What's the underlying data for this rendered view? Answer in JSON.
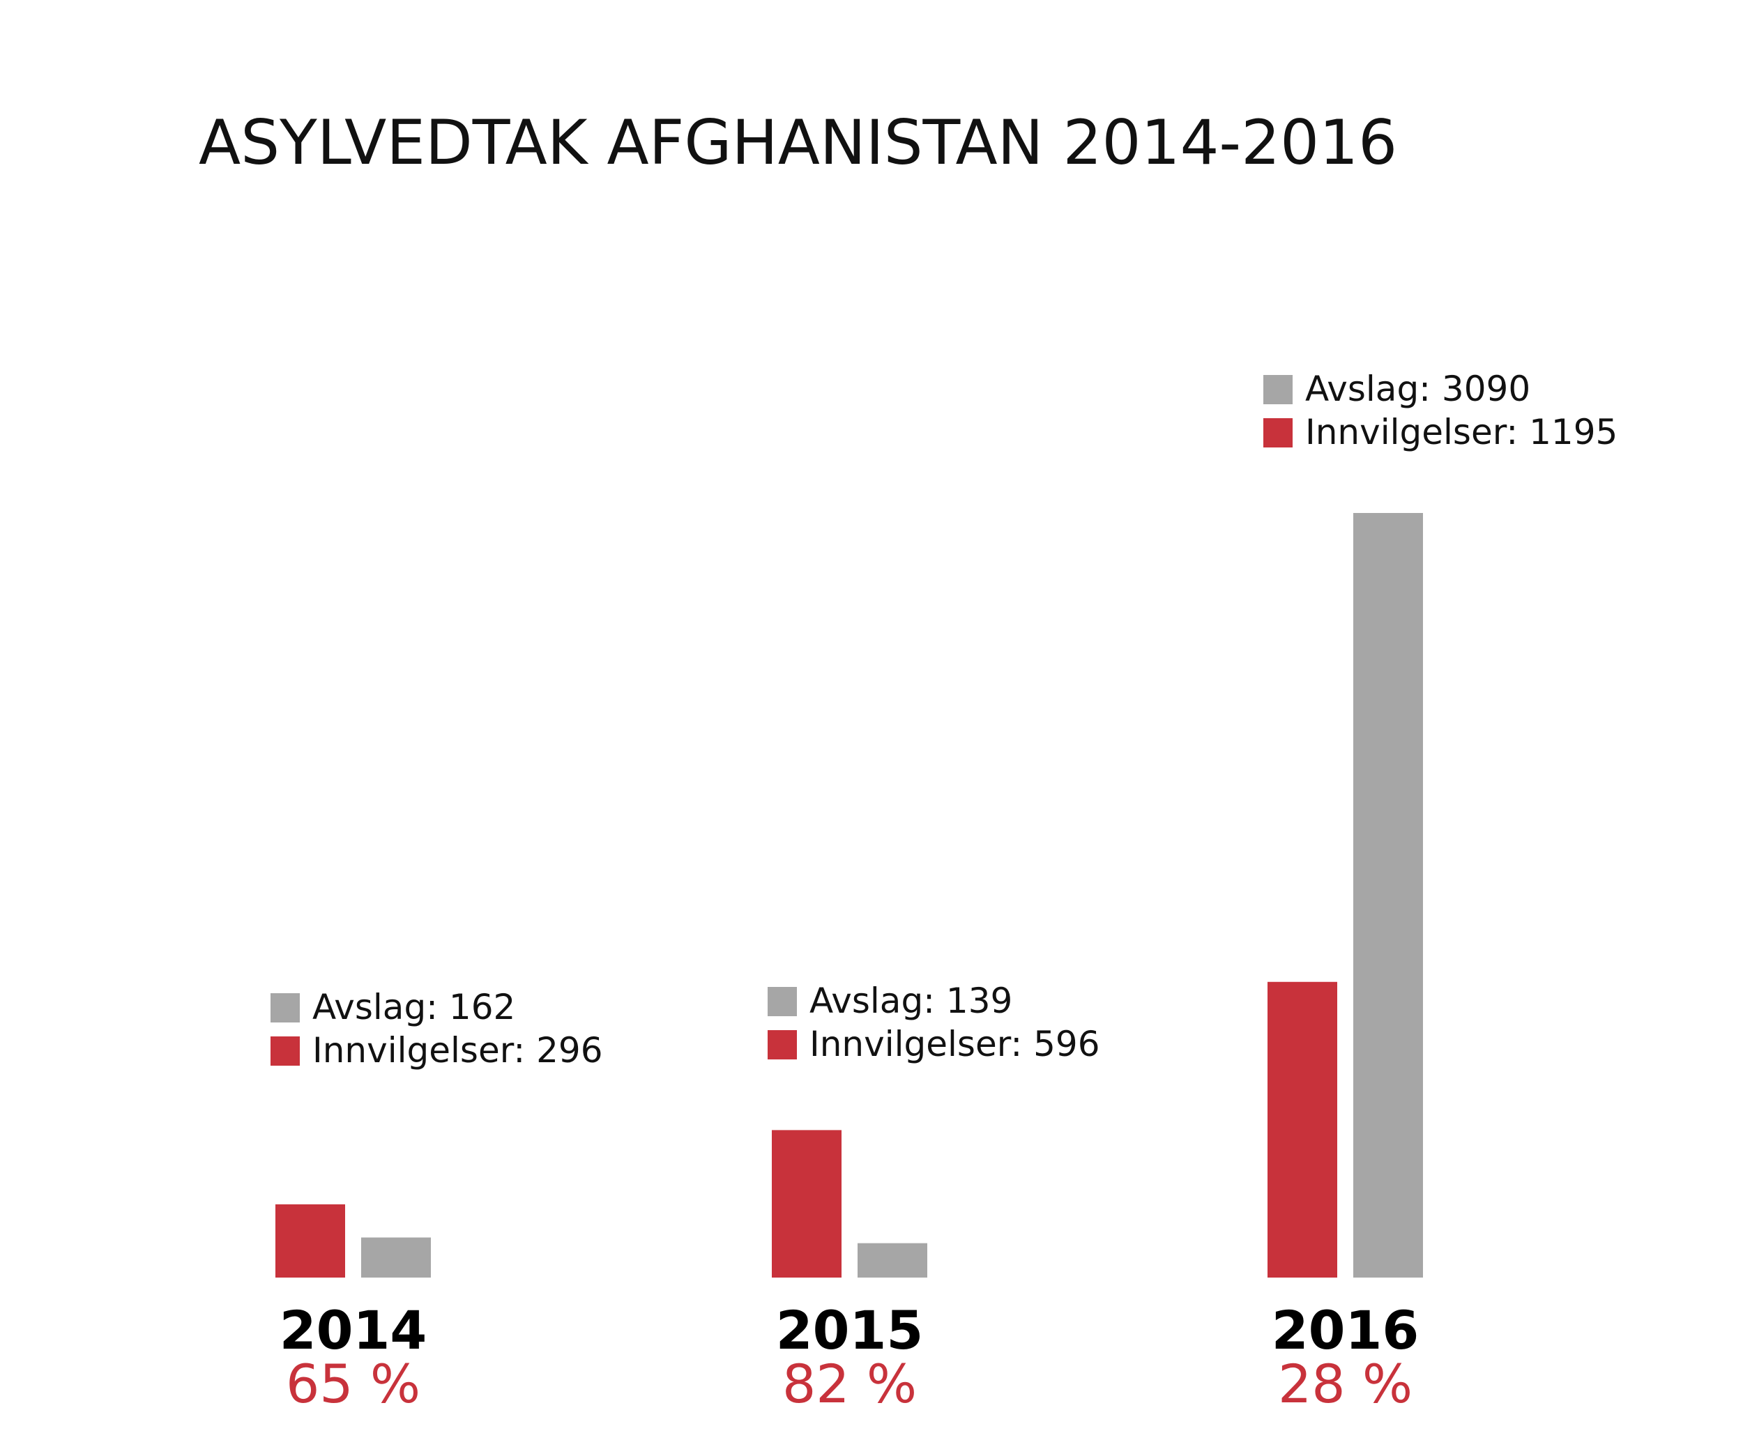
{
  "chart_data": {
    "type": "bar",
    "title": "ASYLVEDTAK AFGHANISTAN 2014-2016",
    "categories": [
      "2014",
      "2015",
      "2016"
    ],
    "series": [
      {
        "name": "Innvilgelser",
        "values": [
          296,
          596,
          1195
        ]
      },
      {
        "name": "Avslag",
        "values": [
          162,
          139,
          3090
        ]
      }
    ],
    "legend": [
      {
        "avslag_text": "Avslag: 162",
        "innvilgelser_text": "Innvilgelser: 296"
      },
      {
        "avslag_text": "Avslag: 139",
        "innvilgelser_text": "Innvilgelser: 596"
      },
      {
        "avslag_text": "Avslag: 3090",
        "innvilgelser_text": "Innvilgelser: 1195"
      }
    ],
    "percentages": [
      "65 %",
      "82 %",
      "28 %"
    ],
    "ylim": [
      0,
      3090
    ],
    "grid": false,
    "colors": {
      "innvilgelser": "#c8323b",
      "avslag": "#a6a6a6",
      "percent": "#c8323b"
    }
  }
}
